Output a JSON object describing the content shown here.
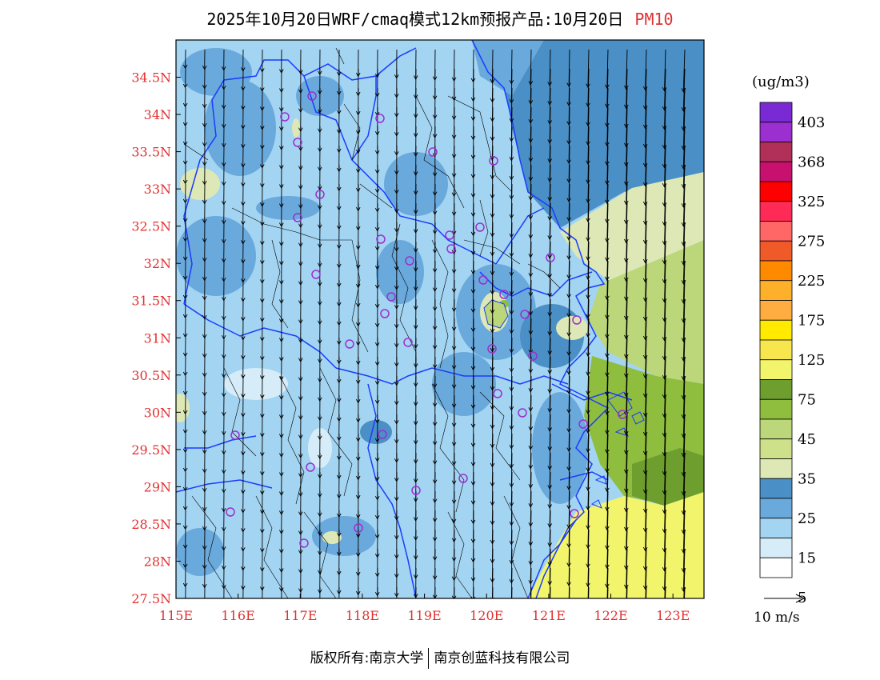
{
  "title": {
    "main": "2025年10月20日WRF/cmaq模式12km预报产品:10月20日",
    "variable": "PM10"
  },
  "axes": {
    "lon_ticks": [
      "115E",
      "116E",
      "117E",
      "118E",
      "119E",
      "120E",
      "121E",
      "122E",
      "123E"
    ],
    "lat_ticks": [
      "27.5N",
      "28N",
      "28.5N",
      "29N",
      "29.5N",
      "30N",
      "30.5N",
      "31N",
      "31.5N",
      "32N",
      "32.5N",
      "33N",
      "33.5N",
      "34N",
      "34.5N"
    ],
    "lon_range": [
      115,
      123.5
    ],
    "lat_range": [
      27.5,
      35.0
    ]
  },
  "legend": {
    "unit": "(ug/m3)",
    "labels": [
      "403",
      "368",
      "325",
      "275",
      "225",
      "175",
      "125",
      "75",
      "45",
      "35",
      "25",
      "15",
      "5"
    ],
    "colors": [
      "#7a2ad4",
      "#9b2fcf",
      "#b0305a",
      "#c8106e",
      "#ff0000",
      "#ff2a55",
      "#ff6666",
      "#f05a28",
      "#ff8a00",
      "#ffb02a",
      "#ffac40",
      "#ffea00",
      "#f7e64d",
      "#f2f56c",
      "#6e9e2e",
      "#8fbd3e",
      "#bcd67a",
      "#cfe08a",
      "#dde8b6",
      "#4a8fc5",
      "#6aa9dc",
      "#a3d4f2",
      "#d6edf9",
      "#ffffff"
    ]
  },
  "wind_scale": {
    "label": "10 m/s"
  },
  "colors": {
    "axis_label": "#e03030",
    "province_border": "#1a3cff",
    "city_border": "#000000"
  },
  "footer": {
    "copyright": "版权所有:南京大学",
    "company": "南京创蓝科技有限公司"
  }
}
